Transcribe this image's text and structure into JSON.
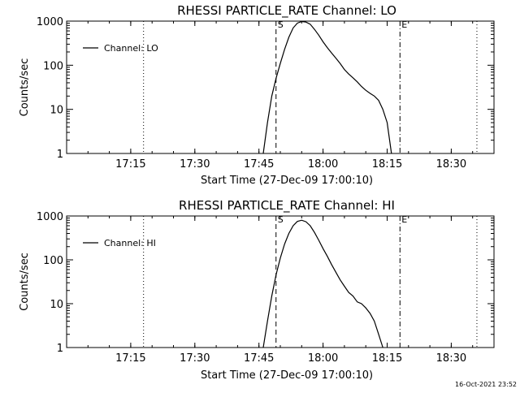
{
  "footer": {
    "timestamp": "16-Oct-2021 23:52"
  },
  "chart_data": [
    {
      "type": "line",
      "title": "RHESSI PARTICLE_RATE Channel: LO",
      "xlabel": "Start Time (27-Dec-09 17:00:10)",
      "ylabel": "Counts/sec",
      "yscale": "log",
      "ylim": [
        1,
        1000
      ],
      "xlim": [
        "17:00",
        "18:40"
      ],
      "x_ticks": [
        "17:15",
        "17:30",
        "17:45",
        "18:00",
        "18:15",
        "18:30"
      ],
      "y_ticks": [
        "1",
        "10",
        "100",
        "1000"
      ],
      "grid": false,
      "legend": {
        "position": "top-left",
        "entries": [
          "Channel: LO"
        ]
      },
      "markers": [
        {
          "time": "17:18",
          "style": "dotted",
          "label": ""
        },
        {
          "time": "17:49",
          "style": "dashed",
          "label": "S"
        },
        {
          "time": "18:18",
          "style": "dash-dot",
          "label": "E"
        },
        {
          "time": "18:36",
          "style": "dotted",
          "label": ""
        }
      ],
      "series": [
        {
          "name": "Channel: LO",
          "x": [
            "17:46",
            "17:47",
            "17:48",
            "17:49",
            "17:50",
            "17:51",
            "17:52",
            "17:53",
            "17:54",
            "17:55",
            "17:56",
            "17:57",
            "17:58",
            "17:59",
            "18:00",
            "18:01",
            "18:02",
            "18:03",
            "18:04",
            "18:05",
            "18:06",
            "18:07",
            "18:08",
            "18:09",
            "18:10",
            "18:11",
            "18:12",
            "18:13",
            "18:14",
            "18:15",
            "18:16"
          ],
          "y": [
            1,
            5,
            20,
            50,
            110,
            230,
            430,
            700,
            900,
            980,
            950,
            850,
            650,
            480,
            340,
            250,
            190,
            145,
            110,
            80,
            63,
            52,
            42,
            33,
            27,
            23,
            20,
            16,
            10,
            5,
            1
          ]
        }
      ]
    },
    {
      "type": "line",
      "title": "RHESSI PARTICLE_RATE Channel: HI",
      "xlabel": "Start Time (27-Dec-09 17:00:10)",
      "ylabel": "Counts/sec",
      "yscale": "log",
      "ylim": [
        1,
        1000
      ],
      "xlim": [
        "17:00",
        "18:40"
      ],
      "x_ticks": [
        "17:15",
        "17:30",
        "17:45",
        "18:00",
        "18:15",
        "18:30"
      ],
      "y_ticks": [
        "1",
        "10",
        "100",
        "1000"
      ],
      "grid": false,
      "legend": {
        "position": "top-left",
        "entries": [
          "Channel: HI"
        ]
      },
      "markers": [
        {
          "time": "17:18",
          "style": "dotted",
          "label": ""
        },
        {
          "time": "17:49",
          "style": "dashed",
          "label": "S"
        },
        {
          "time": "18:18",
          "style": "dash-dot",
          "label": "E"
        },
        {
          "time": "18:36",
          "style": "dotted",
          "label": ""
        }
      ],
      "series": [
        {
          "name": "Channel: HI",
          "x": [
            "17:46",
            "17:47",
            "17:48",
            "17:49",
            "17:50",
            "17:51",
            "17:52",
            "17:53",
            "17:54",
            "17:55",
            "17:56",
            "17:57",
            "17:58",
            "17:59",
            "18:00",
            "18:01",
            "18:02",
            "18:03",
            "18:04",
            "18:05",
            "18:06",
            "18:07",
            "18:08",
            "18:09",
            "18:10",
            "18:11",
            "18:12",
            "18:13",
            "18:14"
          ],
          "y": [
            1,
            4,
            15,
            45,
            110,
            230,
            400,
            600,
            750,
            800,
            740,
            600,
            420,
            280,
            180,
            120,
            78,
            52,
            35,
            25,
            18,
            15,
            11,
            10,
            8,
            6,
            4,
            2,
            1
          ]
        }
      ]
    }
  ]
}
